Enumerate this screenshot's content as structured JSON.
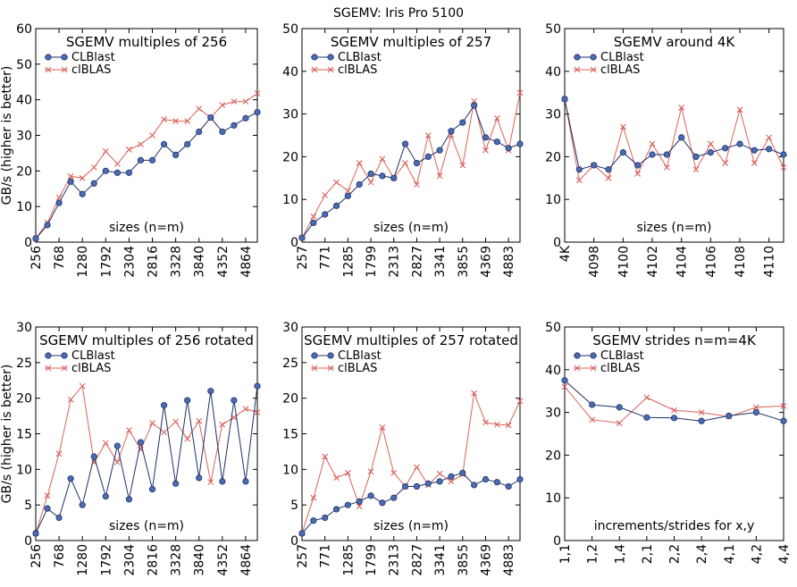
{
  "figure": {
    "title": "SGEMV: Iris Pro 5100"
  },
  "colors": {
    "clblast_fill": "#4a6cb3",
    "clblast_stroke": "#1f2f66",
    "clblas_line": "#d9625a"
  },
  "chart_data": [
    {
      "type": "line",
      "title": "SGEMV multiples of 256",
      "ylabel": "GB/s (higher is better)",
      "xlabel": "sizes (n=m)",
      "ylim": [
        0,
        60
      ],
      "yticks": [
        0,
        10,
        20,
        30,
        40,
        50,
        60
      ],
      "categories": [
        "256",
        "512",
        "768",
        "1024",
        "1280",
        "1536",
        "1792",
        "2048",
        "2304",
        "2560",
        "2816",
        "3072",
        "3328",
        "3584",
        "3840",
        "4096",
        "4352",
        "4608",
        "4864",
        "5120"
      ],
      "xtick_labels": [
        "256",
        "768",
        "1280",
        "1792",
        "2304",
        "2816",
        "3328",
        "3840",
        "4352",
        "4864"
      ],
      "legend": "top-left",
      "series": [
        {
          "name": "CLBlast",
          "values": [
            1,
            4.8,
            11,
            17,
            13.5,
            16.5,
            20,
            19.5,
            19.5,
            23,
            23,
            27.5,
            24.5,
            27.5,
            31,
            35,
            31,
            32.8,
            34.8,
            36.5
          ]
        },
        {
          "name": "clBLAS",
          "values": [
            1,
            5.5,
            12.5,
            18.5,
            18,
            21,
            25.5,
            22,
            26,
            27.5,
            30,
            34.5,
            34,
            34,
            37.5,
            35,
            38.5,
            39.5,
            39.5,
            41.8
          ]
        }
      ]
    },
    {
      "type": "line",
      "title": "SGEMV multiples of 257",
      "ylabel": "",
      "xlabel": "sizes (n=m)",
      "ylim": [
        0,
        50
      ],
      "yticks": [
        0,
        10,
        20,
        30,
        40,
        50
      ],
      "categories": [
        "257",
        "514",
        "771",
        "1028",
        "1285",
        "1542",
        "1799",
        "2056",
        "2313",
        "2570",
        "2827",
        "3084",
        "3341",
        "3598",
        "3855",
        "4112",
        "4369",
        "4626",
        "4883",
        "5140"
      ],
      "xtick_labels": [
        "257",
        "771",
        "1285",
        "1799",
        "2313",
        "2827",
        "3341",
        "3855",
        "4369",
        "4883"
      ],
      "legend": "top-left",
      "series": [
        {
          "name": "CLBlast",
          "values": [
            1,
            4.5,
            6.5,
            8.5,
            10.8,
            13.5,
            16,
            15.5,
            15,
            23,
            18.5,
            20,
            21.5,
            26,
            28,
            32,
            24.5,
            23.5,
            22,
            23
          ]
        },
        {
          "name": "clBLAS",
          "values": [
            1,
            6,
            11,
            14,
            12,
            18.5,
            14,
            19.5,
            15,
            18.5,
            13.5,
            25,
            15.5,
            25,
            18,
            33,
            21.5,
            29,
            21.5,
            35
          ]
        }
      ]
    },
    {
      "type": "line",
      "title": "SGEMV around 4K",
      "ylabel": "",
      "xlabel": "sizes (n=m)",
      "ylim": [
        0,
        50
      ],
      "yticks": [
        0,
        10,
        20,
        30,
        40,
        50
      ],
      "categories": [
        "4096",
        "4097",
        "4098",
        "4099",
        "4100",
        "4101",
        "4102",
        "4103",
        "4104",
        "4105",
        "4106",
        "4107",
        "4108",
        "4109",
        "4110",
        "4111"
      ],
      "xtick_labels": [
        "4K",
        "4098",
        "4100",
        "4102",
        "4104",
        "4106",
        "4108",
        "4110"
      ],
      "legend": "top-left",
      "series": [
        {
          "name": "CLBlast",
          "values": [
            33.5,
            17,
            18,
            17,
            21,
            18,
            20.5,
            20.5,
            24.5,
            20,
            21,
            22,
            23,
            21.5,
            21.8,
            20.5
          ]
        },
        {
          "name": "clBLAS",
          "values": [
            33.5,
            14.5,
            18,
            15,
            27,
            16,
            23,
            17.5,
            31.5,
            17,
            23,
            18.5,
            31,
            18.5,
            24.5,
            17.5
          ]
        }
      ]
    },
    {
      "type": "line",
      "title": "SGEMV multiples of 256 rotated",
      "ylabel": "GB/s (higher is better)",
      "xlabel": "sizes (n=m)",
      "ylim": [
        0,
        30
      ],
      "yticks": [
        0,
        5,
        10,
        15,
        20,
        25,
        30
      ],
      "categories": [
        "256",
        "512",
        "768",
        "1024",
        "1280",
        "1536",
        "1792",
        "2048",
        "2304",
        "2560",
        "2816",
        "3072",
        "3328",
        "3584",
        "3840",
        "4096",
        "4352",
        "4608",
        "4864",
        "5120"
      ],
      "xtick_labels": [
        "256",
        "768",
        "1280",
        "1792",
        "2304",
        "2816",
        "3328",
        "3840",
        "4352",
        "4864"
      ],
      "legend": "top-left",
      "series": [
        {
          "name": "CLBlast",
          "values": [
            1,
            4.5,
            3.2,
            8.7,
            5,
            11.8,
            6.2,
            13.3,
            5.8,
            13.8,
            7.2,
            19,
            8,
            19.7,
            8.8,
            21,
            8.3,
            19.7,
            8.3,
            21.7
          ]
        },
        {
          "name": "clBLAS",
          "values": [
            1,
            6.3,
            12.2,
            19.8,
            21.7,
            11,
            13.7,
            11,
            15.5,
            12.8,
            16.5,
            15.2,
            16.7,
            14.3,
            16.8,
            8.2,
            16.3,
            17.3,
            18.5,
            18
          ]
        }
      ]
    },
    {
      "type": "line",
      "title": "SGEMV multiples of 257 rotated",
      "ylabel": "",
      "xlabel": "sizes (n=m)",
      "ylim": [
        0,
        30
      ],
      "yticks": [
        0,
        5,
        10,
        15,
        20,
        25,
        30
      ],
      "categories": [
        "257",
        "514",
        "771",
        "1028",
        "1285",
        "1542",
        "1799",
        "2056",
        "2313",
        "2570",
        "2827",
        "3084",
        "3341",
        "3598",
        "3855",
        "4112",
        "4369",
        "4626",
        "4883",
        "5140"
      ],
      "xtick_labels": [
        "257",
        "771",
        "1285",
        "1799",
        "2313",
        "2827",
        "3341",
        "3855",
        "4369",
        "4883"
      ],
      "legend": "top-left",
      "series": [
        {
          "name": "CLBlast",
          "values": [
            1,
            2.8,
            3.2,
            4.4,
            5,
            5.5,
            6.3,
            5.3,
            6,
            7.6,
            7.6,
            8,
            8.3,
            9,
            9.5,
            7.8,
            8.6,
            8.2,
            7.6,
            8.6
          ]
        },
        {
          "name": "clBLAS",
          "values": [
            1,
            6,
            11.8,
            8.8,
            9.5,
            4.8,
            9.7,
            15.9,
            9.5,
            7.6,
            10.3,
            7.8,
            9.4,
            8.3,
            9.3,
            20.7,
            16.6,
            16.3,
            16.2,
            19.6
          ]
        }
      ]
    },
    {
      "type": "line",
      "title": "SGEMV strides n=m=4K",
      "ylabel": "",
      "xlabel": "increments/strides for x,y",
      "ylim": [
        0,
        50
      ],
      "yticks": [
        0,
        10,
        20,
        30,
        40,
        50
      ],
      "categories": [
        "1,1",
        "1,2",
        "1,4",
        "2,1",
        "2,2",
        "2,4",
        "4,1",
        "4,2",
        "4,4"
      ],
      "xtick_labels": [
        "1,1",
        "1,2",
        "1,4",
        "2,1",
        "2,2",
        "2,4",
        "4,1",
        "4,2",
        "4,4"
      ],
      "legend": "top-left",
      "series": [
        {
          "name": "CLBlast",
          "values": [
            37.5,
            31.8,
            31.2,
            28.8,
            28.7,
            28,
            29.2,
            30,
            28
          ]
        },
        {
          "name": "clBLAS",
          "values": [
            36,
            28.3,
            27.5,
            33.5,
            30.5,
            30,
            29,
            31.2,
            31.5
          ]
        }
      ]
    }
  ]
}
